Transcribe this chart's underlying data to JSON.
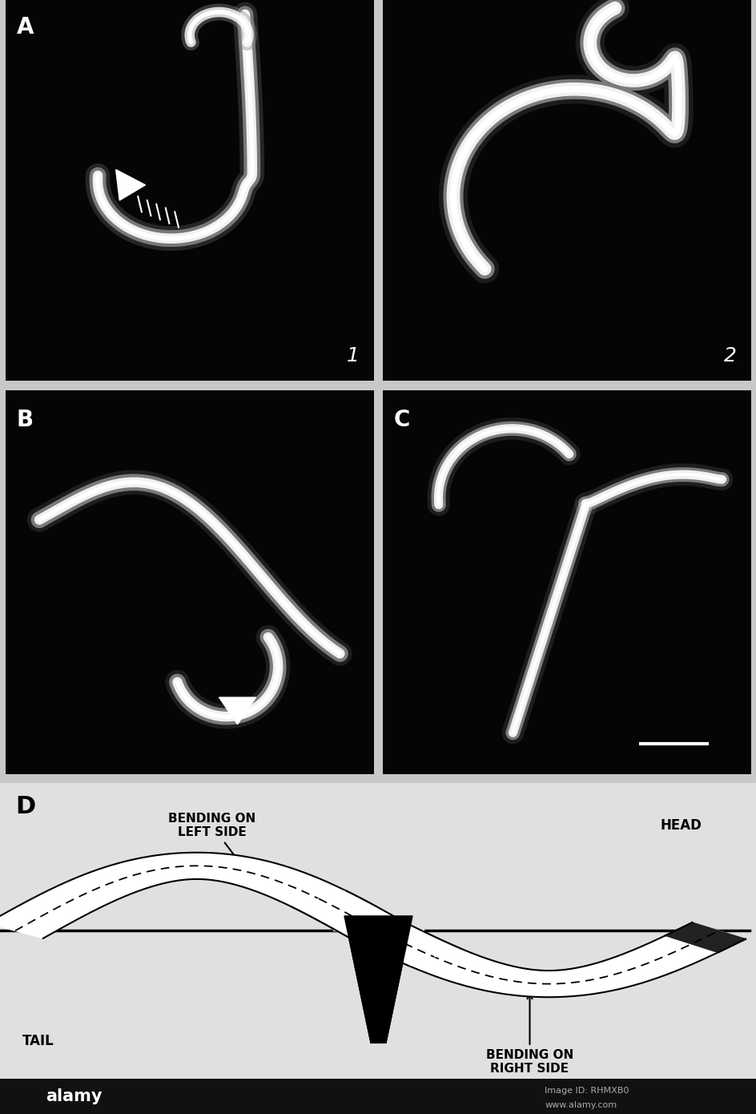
{
  "background_color": "#c8c8c8",
  "photo_bg": "#000000",
  "diagram_bg": "#e0e0e0",
  "footer_bg": "#111111",
  "footer_text": "#ffffff",
  "worm_white": "#ffffff",
  "worm_gray": "#aaaaaa",
  "diagram_labels": {
    "D": "D",
    "bending_left": "BENDING ON\nLEFT SIDE",
    "bending_right": "BENDING ON\nRIGHT SIDE",
    "head": "HEAD",
    "tail": "TAIL"
  },
  "panel_label_fontsize": 20,
  "sub_label_fontsize": 18,
  "diagram_fontsize": 11,
  "alamy_text": "alamy",
  "image_id": "Image ID: RHMXB0",
  "website": "www.alamy.com"
}
